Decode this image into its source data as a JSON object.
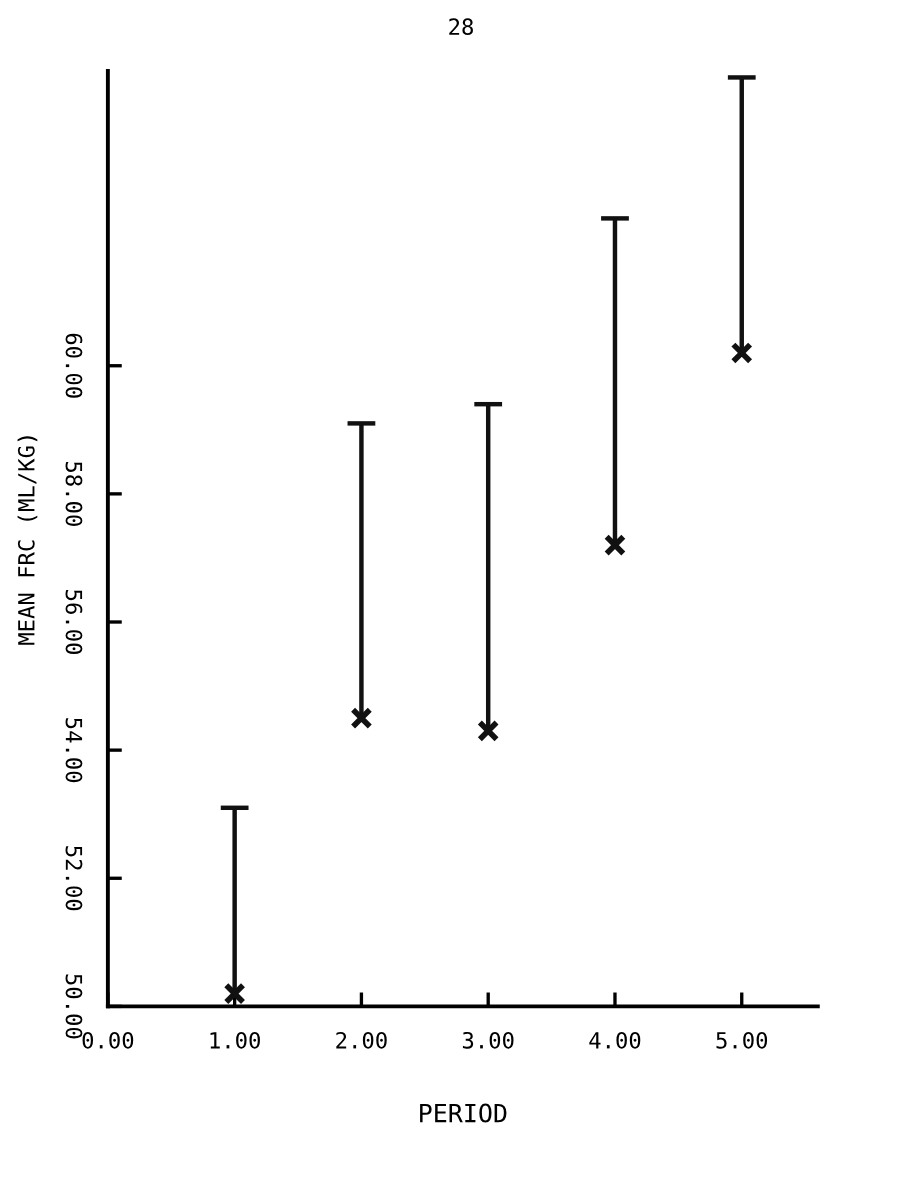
{
  "chart_data": {
    "type": "scatter",
    "xlabel": "PERIOD",
    "ylabel": "MEAN FRC (ML/KG)",
    "annotations": [
      "28"
    ],
    "x": [
      1,
      2,
      3,
      4,
      5
    ],
    "values": [
      50.2,
      54.5,
      54.3,
      57.2,
      60.2
    ],
    "errors": [
      [
        50.2,
        53.1
      ],
      [
        54.5,
        59.1
      ],
      [
        54.3,
        59.4
      ],
      [
        57.2,
        62.3
      ],
      [
        60.2,
        64.5
      ]
    ],
    "color": "#111111",
    "marker": "cross",
    "xlim": [
      0,
      5.6
    ],
    "ylim": [
      50,
      64.6
    ],
    "xticks": [
      {
        "value": 0,
        "label": "0.00"
      },
      {
        "value": 1,
        "label": "1.00"
      },
      {
        "value": 2,
        "label": "2.00"
      },
      {
        "value": 3,
        "label": "3.00"
      },
      {
        "value": 4,
        "label": "4.00"
      },
      {
        "value": 5,
        "label": "5.00"
      }
    ],
    "yticks": [
      {
        "value": 50,
        "label": "50.00"
      },
      {
        "value": 52,
        "label": "52.00"
      },
      {
        "value": 54,
        "label": "54.00"
      },
      {
        "value": 56,
        "label": "56.00"
      },
      {
        "value": 58,
        "label": "58.00"
      },
      {
        "value": 60,
        "label": "60.00"
      }
    ],
    "grid": false,
    "legend": false
  }
}
